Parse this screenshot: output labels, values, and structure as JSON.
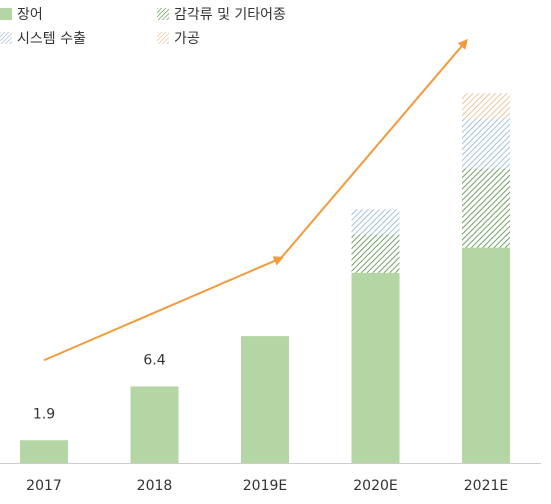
{
  "chart_data": {
    "type": "bar",
    "stacked": true,
    "categories": [
      "2017",
      "2018",
      "2019E",
      "2020E",
      "2021E"
    ],
    "series": [
      {
        "name": "장어",
        "values": [
          1.9,
          6.4,
          10.6,
          15.9,
          18.0
        ],
        "color": "#b3d6a4",
        "pattern": "solid"
      },
      {
        "name": "감각류 및 기타어종",
        "values": [
          0,
          0,
          0,
          3.2,
          6.6
        ],
        "color": "#4c8a3c",
        "pattern": "hatch"
      },
      {
        "name": "시스템 수출",
        "values": [
          0,
          0,
          0,
          2.1,
          4.2
        ],
        "color": "#8fb3cf",
        "pattern": "hatch"
      },
      {
        "name": "가공",
        "values": [
          0,
          0,
          0,
          0,
          2.1
        ],
        "color": "#e8b888",
        "pattern": "hatch"
      }
    ],
    "data_labels": [
      "1.9",
      "6.4",
      "",
      "",
      ""
    ],
    "ylim": [
      0,
      32
    ],
    "grid": false,
    "legend_position": "top-left",
    "trend_arrow": {
      "color": "#f39a3c",
      "description": "growth trend arrow across years"
    }
  }
}
